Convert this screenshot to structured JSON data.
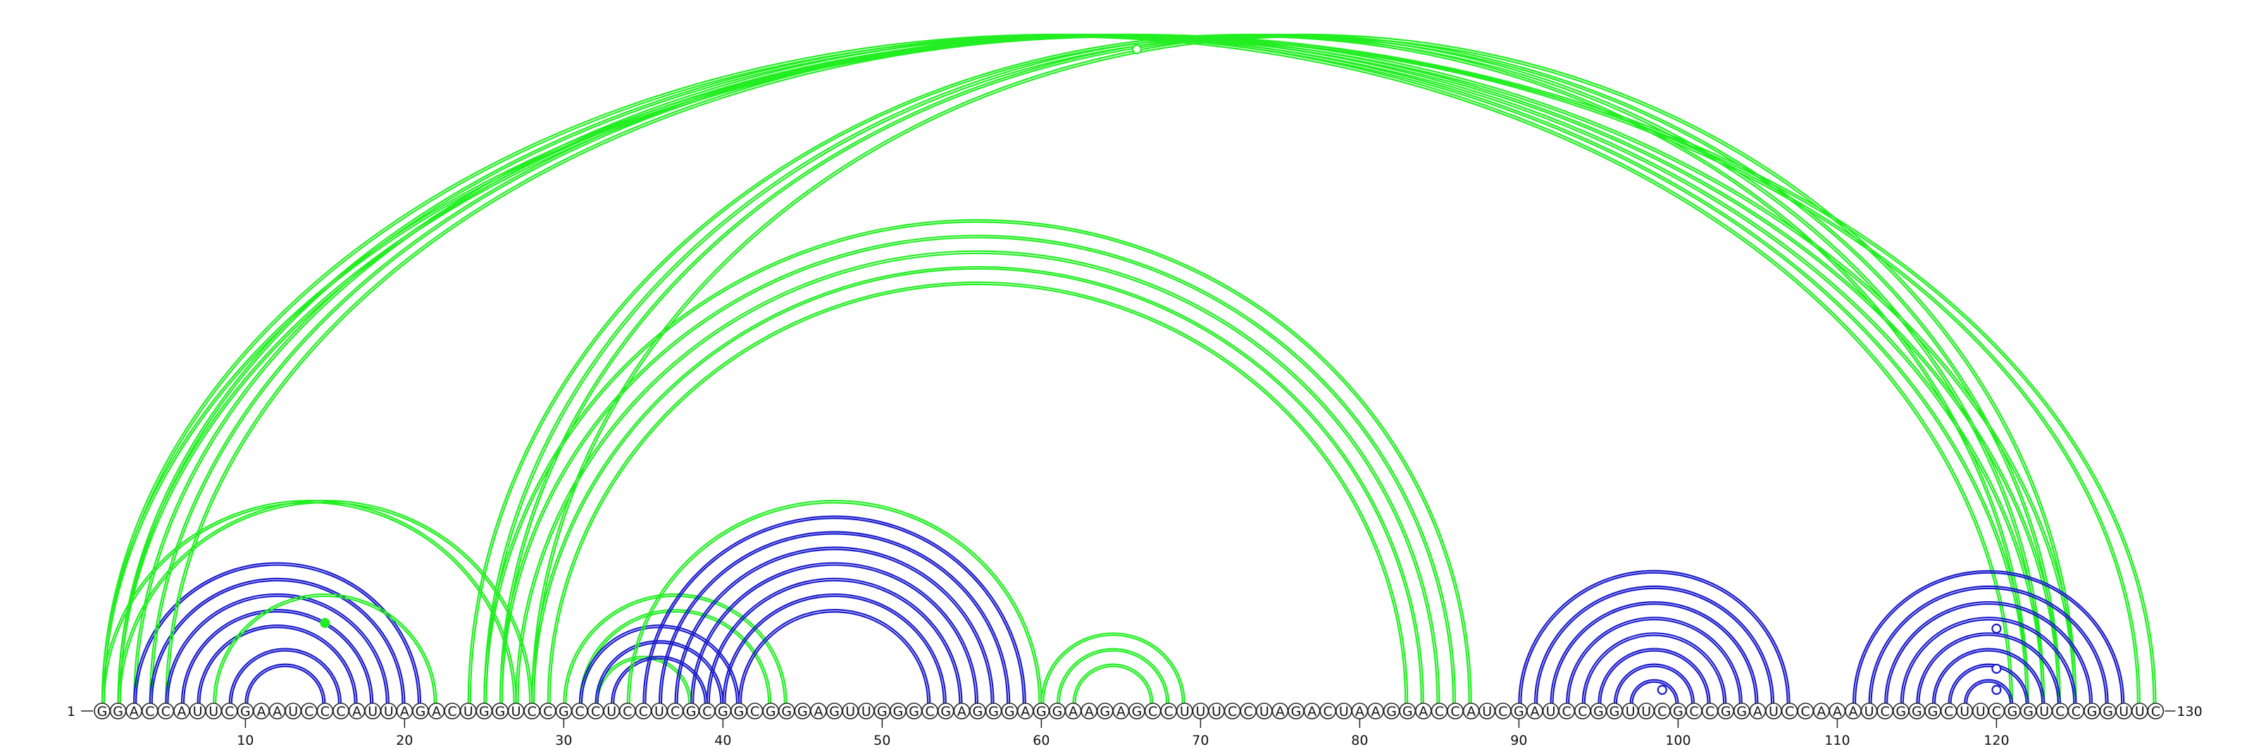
{
  "sequence": "GGACCAUUCGAAUCCCAUUAGACUGGUCCGCCUCCUCGCGGCGGGAGUUGGGCGAGGGAGGAAGAGCCUUUCCUAGACUAAGGACCAUCGAUCCGGUUCGCCGGAUCCAAAUCGGGCUUCGGUCCGGUUC",
  "start_label": "1",
  "end_label": "130",
  "ticks": [
    "10",
    "20",
    "30",
    "40",
    "50",
    "60",
    "70",
    "80",
    "90",
    "100",
    "110",
    "120"
  ],
  "colors": {
    "green": "#22ee22",
    "blue": "#1a1acc"
  },
  "chart_data": {
    "type": "arc",
    "length": 130,
    "pairs": [
      {
        "i": 1,
        "j": 130,
        "color": "green"
      },
      {
        "i": 1,
        "j": 121,
        "color": "green"
      },
      {
        "i": 1,
        "j": 27,
        "color": "green"
      },
      {
        "i": 2,
        "j": 129,
        "color": "green"
      },
      {
        "i": 2,
        "j": 122,
        "color": "green"
      },
      {
        "i": 2,
        "j": 28,
        "color": "green"
      },
      {
        "i": 3,
        "j": 123,
        "color": "green"
      },
      {
        "i": 3,
        "j": 21,
        "color": "blue"
      },
      {
        "i": 4,
        "j": 124,
        "color": "green"
      },
      {
        "i": 4,
        "j": 20,
        "color": "blue"
      },
      {
        "i": 5,
        "j": 125,
        "color": "green"
      },
      {
        "i": 5,
        "j": 19,
        "color": "blue"
      },
      {
        "i": 6,
        "j": 18,
        "color": "blue"
      },
      {
        "i": 7,
        "j": 17,
        "color": "blue"
      },
      {
        "i": 8,
        "j": 22,
        "color": "green"
      },
      {
        "i": 9,
        "j": 16,
        "color": "blue"
      },
      {
        "i": 10,
        "j": 15,
        "color": "blue"
      },
      {
        "i": 15,
        "j": 15,
        "color": "green",
        "marker": "dot"
      },
      {
        "i": 24,
        "j": 122,
        "color": "green"
      },
      {
        "i": 25,
        "j": 87,
        "color": "green"
      },
      {
        "i": 25,
        "j": 123,
        "color": "green"
      },
      {
        "i": 26,
        "j": 86,
        "color": "green"
      },
      {
        "i": 26,
        "j": 124,
        "color": "green"
      },
      {
        "i": 27,
        "j": 85,
        "color": "green"
      },
      {
        "i": 28,
        "j": 84,
        "color": "green"
      },
      {
        "i": 28,
        "j": 125,
        "color": "green"
      },
      {
        "i": 29,
        "j": 83,
        "color": "green"
      },
      {
        "i": 30,
        "j": 44,
        "color": "green"
      },
      {
        "i": 31,
        "j": 43,
        "color": "green"
      },
      {
        "i": 32,
        "j": 38,
        "color": "green"
      },
      {
        "i": 31,
        "j": 41,
        "color": "blue"
      },
      {
        "i": 32,
        "j": 40,
        "color": "blue"
      },
      {
        "i": 33,
        "j": 39,
        "color": "blue"
      },
      {
        "i": 34,
        "j": 60,
        "color": "green"
      },
      {
        "i": 35,
        "j": 59,
        "color": "blue"
      },
      {
        "i": 36,
        "j": 58,
        "color": "blue"
      },
      {
        "i": 37,
        "j": 57,
        "color": "blue"
      },
      {
        "i": 38,
        "j": 56,
        "color": "blue"
      },
      {
        "i": 39,
        "j": 55,
        "color": "blue"
      },
      {
        "i": 40,
        "j": 54,
        "color": "blue"
      },
      {
        "i": 41,
        "j": 53,
        "color": "blue"
      },
      {
        "i": 60,
        "j": 69,
        "color": "green"
      },
      {
        "i": 61,
        "j": 68,
        "color": "green"
      },
      {
        "i": 62,
        "j": 67,
        "color": "green"
      },
      {
        "i": 90,
        "j": 107,
        "color": "blue"
      },
      {
        "i": 91,
        "j": 106,
        "color": "blue"
      },
      {
        "i": 92,
        "j": 105,
        "color": "blue"
      },
      {
        "i": 93,
        "j": 104,
        "color": "blue"
      },
      {
        "i": 94,
        "j": 103,
        "color": "blue"
      },
      {
        "i": 95,
        "j": 102,
        "color": "blue"
      },
      {
        "i": 96,
        "j": 101,
        "color": "blue"
      },
      {
        "i": 97,
        "j": 100,
        "color": "blue"
      },
      {
        "i": 99,
        "j": 99,
        "color": "blue",
        "marker": "ring"
      },
      {
        "i": 111,
        "j": 128,
        "color": "blue"
      },
      {
        "i": 112,
        "j": 127,
        "color": "blue"
      },
      {
        "i": 113,
        "j": 126,
        "color": "blue"
      },
      {
        "i": 114,
        "j": 125,
        "color": "blue"
      },
      {
        "i": 115,
        "j": 124,
        "color": "blue"
      },
      {
        "i": 116,
        "j": 123,
        "color": "blue"
      },
      {
        "i": 117,
        "j": 122,
        "color": "blue"
      },
      {
        "i": 118,
        "j": 121,
        "color": "blue"
      },
      {
        "i": 120,
        "j": 120,
        "color": "blue",
        "marker": "ring"
      },
      {
        "i": 66,
        "j": 66,
        "color": "green",
        "marker": "ring"
      }
    ]
  }
}
